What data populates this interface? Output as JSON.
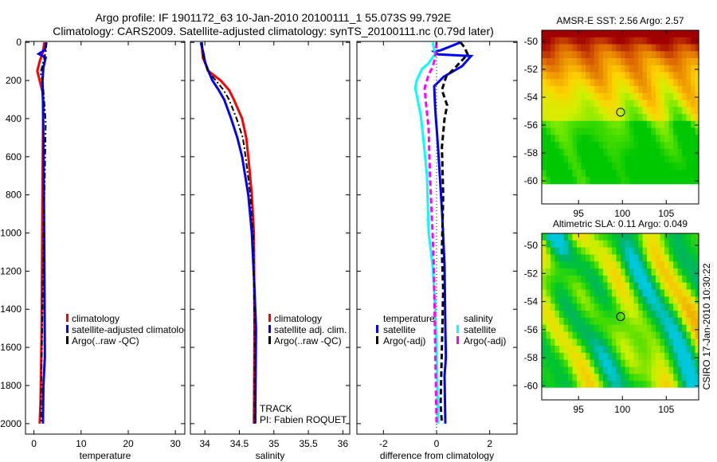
{
  "header": {
    "title_line1": "Argo profile: IF 1901172_63 10-Jan-2010 20100111_1 55.073S 99.792E",
    "title_line2": "Climatology: CARS2009. Satellite-adjusted climatology: synTS_20100111.nc (0.79d later)"
  },
  "footer": {
    "stamp": "CSIRO 17-Jan-2010 10:30:22",
    "track": "TRACK",
    "pi": "PI: Fabien ROQUET"
  },
  "colors": {
    "climatology": "#ff0000",
    "satellite": "#0000ff",
    "argo": "#000000",
    "sal_satellite": "#00ffff",
    "sal_argo": "#ff00ff"
  },
  "chart_data": [
    {
      "type": "line",
      "id": "temperature",
      "xlabel": "temperature",
      "ylabel": "",
      "xlim": [
        -1.8,
        32
      ],
      "ylim": [
        2055,
        -5
      ],
      "xticks": [
        "0",
        "10",
        "20",
        "30"
      ],
      "xtick_values": [
        0,
        10,
        20,
        30
      ],
      "yticks": [
        "0",
        "200",
        "400",
        "600",
        "800",
        "1000",
        "1200",
        "1400",
        "1600",
        "1800",
        "2000"
      ],
      "ytick_values": [
        0,
        200,
        400,
        600,
        800,
        1000,
        1200,
        1400,
        1600,
        1800,
        2000
      ],
      "legend": [
        "climatology",
        "satellite-adjusted climatology",
        "Argo(..raw -QC)"
      ],
      "series": [
        {
          "name": "climatology",
          "style": "solid",
          "color": "#ff0000",
          "points": [
            [
              2.2,
              0
            ],
            [
              1.9,
              50
            ],
            [
              1.2,
              100
            ],
            [
              0.7,
              150
            ],
            [
              1.2,
              200
            ],
            [
              1.8,
              260
            ],
            [
              2.0,
              320
            ],
            [
              1.9,
              500
            ],
            [
              1.8,
              800
            ],
            [
              1.7,
              1200
            ],
            [
              1.6,
              1550
            ],
            [
              1.4,
              1880
            ],
            [
              1.2,
              2000
            ]
          ]
        },
        {
          "name": "satellite-adjusted climatology",
          "style": "solid",
          "color": "#0000ff",
          "points": [
            [
              2.6,
              0
            ],
            [
              2.3,
              40
            ],
            [
              1.0,
              60
            ],
            [
              2.5,
              80
            ],
            [
              2.0,
              130
            ],
            [
              1.8,
              200
            ],
            [
              1.9,
              300
            ],
            [
              2.0,
              500
            ],
            [
              2.1,
              800
            ],
            [
              2.2,
              1200
            ],
            [
              2.3,
              1650
            ],
            [
              2.0,
              1800
            ],
            [
              1.9,
              2000
            ]
          ]
        },
        {
          "name": "Argo(..raw -QC)",
          "style": "dashdot",
          "color": "#000000",
          "points": [
            [
              2.7,
              0
            ],
            [
              2.5,
              50
            ],
            [
              2.0,
              100
            ],
            [
              1.4,
              160
            ],
            [
              1.9,
              220
            ],
            [
              2.2,
              320
            ],
            [
              2.5,
              420
            ],
            [
              2.3,
              700
            ],
            [
              2.0,
              1000
            ],
            [
              1.8,
              1400
            ],
            [
              1.5,
              1900
            ],
            [
              1.5,
              2000
            ]
          ]
        }
      ]
    },
    {
      "type": "line",
      "id": "salinity",
      "xlabel": "salinity",
      "xlim": [
        33.79,
        36.1
      ],
      "ylim": [
        2055,
        -5
      ],
      "xticks": [
        "34",
        "34.5",
        "35",
        "35.5",
        "36"
      ],
      "xtick_values": [
        34,
        34.5,
        35,
        35.5,
        36
      ],
      "ytick_values": [
        0,
        200,
        400,
        600,
        800,
        1000,
        1200,
        1400,
        1600,
        1800,
        2000
      ],
      "legend": [
        "climatology",
        "satellite adj. clim.",
        "Argo(..raw -QC)"
      ],
      "series": [
        {
          "name": "climatology",
          "style": "solid",
          "color": "#ff0000",
          "points": [
            [
              33.95,
              0
            ],
            [
              33.97,
              80
            ],
            [
              34.05,
              150
            ],
            [
              34.23,
              200
            ],
            [
              34.35,
              250
            ],
            [
              34.42,
              300
            ],
            [
              34.54,
              400
            ],
            [
              34.6,
              500
            ],
            [
              34.63,
              600
            ],
            [
              34.68,
              800
            ],
            [
              34.71,
              1000
            ],
            [
              34.72,
              1500
            ],
            [
              34.71,
              2000
            ]
          ]
        },
        {
          "name": "satellite adj. clim.",
          "style": "solid",
          "color": "#0000ff",
          "points": [
            [
              33.94,
              0
            ],
            [
              33.98,
              60
            ],
            [
              34.0,
              100
            ],
            [
              34.05,
              150
            ],
            [
              34.11,
              200
            ],
            [
              34.2,
              250
            ],
            [
              34.28,
              300
            ],
            [
              34.38,
              400
            ],
            [
              34.47,
              500
            ],
            [
              34.54,
              600
            ],
            [
              34.63,
              800
            ],
            [
              34.68,
              1000
            ],
            [
              34.72,
              1300
            ],
            [
              34.74,
              1500
            ],
            [
              34.73,
              2000
            ]
          ]
        },
        {
          "name": "Argo(..raw -QC)",
          "style": "dashdot",
          "color": "#000000",
          "points": [
            [
              33.96,
              0
            ],
            [
              33.98,
              80
            ],
            [
              34.04,
              150
            ],
            [
              34.16,
              200
            ],
            [
              34.27,
              250
            ],
            [
              34.35,
              300
            ],
            [
              34.46,
              400
            ],
            [
              34.55,
              500
            ],
            [
              34.59,
              600
            ],
            [
              34.66,
              800
            ],
            [
              34.7,
              1000
            ],
            [
              34.72,
              1500
            ],
            [
              34.72,
              2000
            ]
          ]
        }
      ]
    },
    {
      "type": "line",
      "id": "difference",
      "xlabel": "difference from climatology",
      "xlim": [
        -3.0,
        3.03
      ],
      "ylim": [
        2055,
        -5
      ],
      "xticks": [
        "-2",
        "0",
        "2"
      ],
      "xtick_values": [
        -2,
        0,
        2
      ],
      "ytick_values": [
        0,
        200,
        400,
        600,
        800,
        1000,
        1200,
        1400,
        1600,
        1800,
        2000
      ],
      "legend_temperature_title": "temperature",
      "legend_salinity_title": "salinity",
      "legend": [
        "satellite",
        "Argo(-adj)",
        "satellite",
        "Argo(-adj)"
      ],
      "series": [
        {
          "name": "temperature satellite",
          "style": "solid",
          "color": "#0000ff",
          "points": [
            [
              0.9,
              0
            ],
            [
              0.15,
              42
            ],
            [
              -0.1,
              48
            ],
            [
              0.06,
              63
            ],
            [
              1.3,
              72
            ],
            [
              0.96,
              125
            ],
            [
              0.27,
              180
            ],
            [
              -0.09,
              230
            ],
            [
              -0.05,
              350
            ],
            [
              0.06,
              560
            ],
            [
              0.21,
              900
            ],
            [
              0.3,
              1170
            ],
            [
              0.33,
              1500
            ],
            [
              0.35,
              1650
            ],
            [
              0.3,
              1750
            ],
            [
              0.33,
              2000
            ]
          ]
        },
        {
          "name": "temperature Argo(-adj)",
          "style": "dashed",
          "color": "#000000",
          "points": [
            [
              0.9,
              0
            ],
            [
              1.05,
              25
            ],
            [
              1.17,
              63
            ],
            [
              0.75,
              125
            ],
            [
              0.36,
              180
            ],
            [
              0.2,
              250
            ],
            [
              0.4,
              330
            ],
            [
              0.3,
              400
            ],
            [
              0.2,
              550
            ],
            [
              0.25,
              800
            ],
            [
              0.2,
              1100
            ],
            [
              0.25,
              1300
            ],
            [
              0.2,
              1600
            ],
            [
              0.15,
              1900
            ],
            [
              0.2,
              2000
            ]
          ]
        },
        {
          "name": "salinity satellite",
          "style": "solid",
          "color": "#00ffff",
          "points": [
            [
              -0.15,
              0
            ],
            [
              -0.05,
              60
            ],
            [
              -0.3,
              110
            ],
            [
              -0.55,
              140
            ],
            [
              -0.75,
              200
            ],
            [
              -0.8,
              240
            ],
            [
              -0.6,
              380
            ],
            [
              -0.5,
              500
            ],
            [
              -0.36,
              700
            ],
            [
              -0.3,
              1000
            ],
            [
              -0.15,
              1170
            ],
            [
              -0.05,
              1400
            ],
            [
              0.0,
              1600
            ],
            [
              0.06,
              2000
            ]
          ]
        },
        {
          "name": "salinity Argo(-adj)",
          "style": "dashed",
          "color": "#ff00ff",
          "points": [
            [
              0.0,
              0
            ],
            [
              -0.05,
              80
            ],
            [
              -0.15,
              130
            ],
            [
              -0.3,
              170
            ],
            [
              -0.45,
              240
            ],
            [
              -0.4,
              320
            ],
            [
              -0.3,
              450
            ],
            [
              -0.25,
              700
            ],
            [
              -0.15,
              1000
            ],
            [
              -0.1,
              1200
            ],
            [
              -0.05,
              1600
            ],
            [
              0.0,
              2000
            ]
          ]
        }
      ]
    },
    {
      "type": "heatmap",
      "id": "sst",
      "title": "AMSR-E SST: 2.56 Argo: 2.57",
      "xlim": [
        90.8,
        108.7
      ],
      "ylim": [
        -61.65,
        -49.2
      ],
      "data_lat_range": [
        -60.2,
        -49.2
      ],
      "xticks": [
        "95",
        "100",
        "105"
      ],
      "xtick_values": [
        95,
        100,
        105
      ],
      "yticks": [
        "-50",
        "-52",
        "-54",
        "-56",
        "-58",
        "-60"
      ],
      "ytick_values": [
        -50,
        -52,
        -54,
        -56,
        -58,
        -60
      ],
      "colormap": [
        "#00c800",
        "#66e600",
        "#d2f000",
        "#ffd200",
        "#f0a000",
        "#dc6400",
        "#a00000"
      ],
      "argo_position": [
        99.792,
        -55.073
      ]
    },
    {
      "type": "heatmap",
      "id": "sla",
      "title": "Altimetric SLA: 0.11 Argo: 0.049",
      "xlim": [
        90.8,
        108.7
      ],
      "ylim": [
        -61,
        -49.15
      ],
      "data_lat_range": [
        -60.1,
        -49.15
      ],
      "xticks": [
        "95",
        "100",
        "105"
      ],
      "xtick_values": [
        95,
        100,
        105
      ],
      "yticks": [
        "-50",
        "-52",
        "-54",
        "-56",
        "-58",
        "-60"
      ],
      "ytick_values": [
        -50,
        -52,
        -54,
        -56,
        -58,
        -60
      ],
      "colormap": [
        "#00c8dc",
        "#00b464",
        "#00c828",
        "#46dc00",
        "#c8f000",
        "#f0dc00",
        "#f0b400"
      ],
      "argo_position": [
        99.792,
        -55.073
      ]
    }
  ]
}
